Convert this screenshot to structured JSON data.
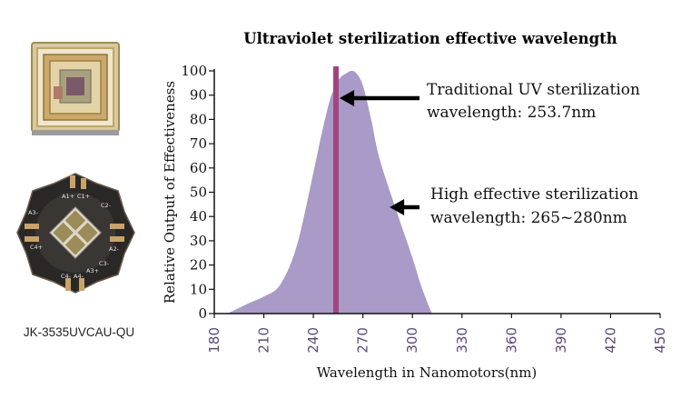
{
  "product": {
    "caption": "JK-3535UVCAU-QU",
    "pad_labels": [
      "A1+",
      "C1+",
      "C2-",
      "A2-",
      "C3-",
      "A3+",
      "C4-",
      "A4-",
      "C4+",
      "A3-"
    ]
  },
  "colors": {
    "fill": "#a99ac8",
    "marker": "#a0457d",
    "arrow": "#000000",
    "xtick": "#5a4a7a"
  },
  "chart_data": {
    "type": "area",
    "title": "Ultraviolet sterilization effective wavelength",
    "xlabel": "Wavelength in Nanomotors(nm)",
    "ylabel": "Relative Output of Effectiveness",
    "xlim": [
      180,
      450
    ],
    "ylim": [
      0,
      100
    ],
    "x_ticks": [
      "180",
      "210",
      "240",
      "270",
      "300",
      "330",
      "360",
      "390",
      "420",
      "450"
    ],
    "y_ticks": [
      "0",
      "10",
      "20",
      "30",
      "40",
      "50",
      "60",
      "70",
      "80",
      "90",
      "100"
    ],
    "grid": false,
    "series": [
      {
        "x": [
          188,
          200,
          210,
          220,
          230,
          240,
          245,
          250,
          253,
          256,
          260,
          263,
          266,
          270,
          275,
          280,
          290,
          300,
          305,
          310,
          312
        ],
        "y": [
          0,
          4,
          7,
          12,
          28,
          58,
          74,
          88,
          93,
          97,
          99,
          100,
          99,
          94,
          80,
          64,
          43,
          23,
          12,
          3,
          0
        ]
      }
    ],
    "reference_line": {
      "x": 253.7
    },
    "annotations": [
      {
        "lines": [
          "Traditional UV sterilization",
          "wavelength: 253.7nm"
        ],
        "arrow_to": [
          253.7,
          87
        ]
      },
      {
        "lines": [
          "High effective sterilization",
          "wavelength: 265~280nm"
        ],
        "arrow_to": [
          284,
          43
        ]
      }
    ]
  }
}
